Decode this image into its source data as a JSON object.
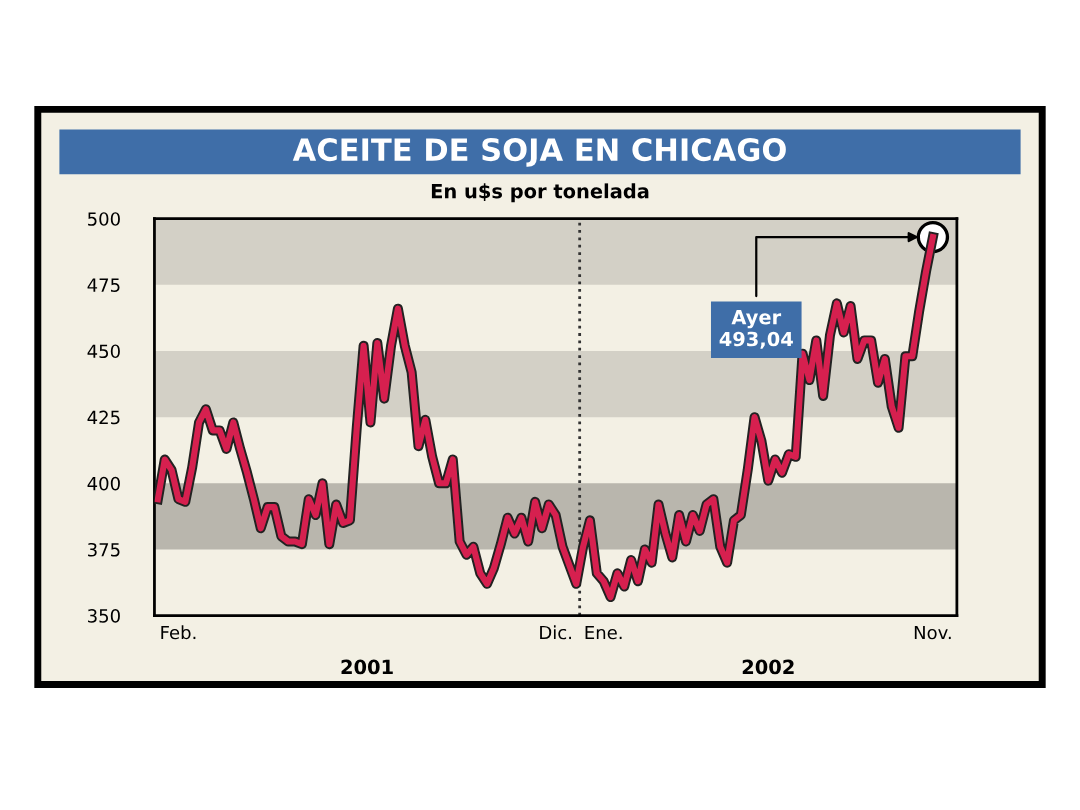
{
  "chart_data": {
    "type": "line",
    "title": "ACEITE DE SOJA EN CHICAGO",
    "subtitle": "En u$s por tonelada",
    "categories": [
      null,
      null,
      null,
      "Feb.",
      null,
      null,
      null,
      null,
      null,
      null,
      null,
      null,
      null,
      null,
      null,
      null,
      null,
      null,
      null,
      null,
      null,
      null,
      null,
      null,
      null,
      null,
      null,
      null,
      null,
      null,
      null,
      null,
      null,
      null,
      null,
      null,
      null,
      null,
      null,
      null,
      null,
      null,
      null,
      null,
      null,
      null,
      null,
      null,
      null,
      null,
      null,
      null,
      null,
      null,
      null,
      null,
      null,
      null,
      "Dic.",
      null,
      null,
      null,
      null,
      null,
      null,
      "Ene.",
      null,
      null,
      null,
      null,
      null,
      null,
      null,
      null,
      null,
      null,
      null,
      null,
      null,
      null,
      null,
      null,
      null,
      null,
      null,
      null,
      null,
      null,
      null,
      null,
      null,
      null,
      null,
      null,
      null,
      null,
      null,
      null,
      null,
      null,
      null,
      null,
      null,
      null,
      null,
      null,
      null,
      null,
      null,
      null,
      null,
      null,
      null,
      "Nov."
    ],
    "series": [
      {
        "color": "#d6204f",
        "values": [
          394,
          409,
          405,
          394,
          393,
          406,
          423,
          428,
          420,
          420,
          413,
          423,
          413,
          404,
          394,
          383,
          391,
          391,
          380,
          378,
          378,
          377,
          394,
          388,
          400,
          377,
          392,
          385,
          386,
          421,
          452,
          423,
          453,
          432,
          452,
          466,
          452,
          442,
          414,
          424,
          410,
          400,
          400,
          409,
          378,
          373,
          376,
          366,
          362,
          368,
          377,
          387,
          381,
          387,
          378,
          393,
          383,
          392,
          388,
          376,
          369,
          362,
          376,
          386,
          366,
          363,
          357,
          366,
          361,
          371,
          363,
          375,
          370,
          392,
          381,
          372,
          388,
          378,
          388,
          382,
          392,
          394,
          376,
          370,
          386,
          388,
          405,
          425,
          416,
          401,
          409,
          404,
          411,
          410,
          449,
          439,
          454,
          433,
          456,
          468,
          457,
          467,
          447,
          454,
          454,
          438,
          447,
          429,
          421,
          448,
          448,
          465,
          480,
          493.04
        ]
      }
    ],
    "ylim": [
      350,
      500
    ],
    "yticks": [
      350,
      375,
      400,
      425,
      450,
      475,
      500
    ],
    "bands": [
      {
        "axis": "y",
        "from": 375,
        "to": 400,
        "color": "#b9b6ad"
      },
      {
        "axis": "y",
        "from": 425,
        "to": 450,
        "color": "#d3d0c6"
      },
      {
        "axis": "y",
        "from": 475,
        "to": 500,
        "color": "#d3d0c6"
      }
    ],
    "annotations": [
      {
        "text": "Ayer\n493,04",
        "x": "Nov.",
        "y": 493.04
      },
      "2001",
      "2002"
    ],
    "grid": false,
    "legend": false,
    "marker": "none",
    "line_style": "solid"
  }
}
